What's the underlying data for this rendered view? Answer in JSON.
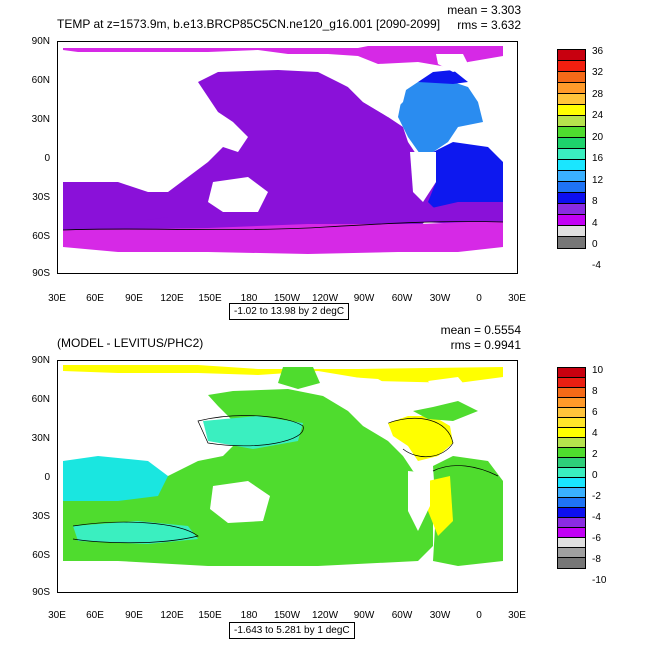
{
  "chart_data": [
    {
      "type": "heatmap",
      "title": "TEMP at z=1573.9m, b.e13.BRCP85C5CN.ne120_g16.001 [2090-2099]",
      "mean_label": "mean = 3.303",
      "rms_label": "rms = 3.632",
      "contour_info": "-1.02 to 13.98 by 2 degC",
      "xticks": [
        "30E",
        "60E",
        "90E",
        "120E",
        "150E",
        "180",
        "150W",
        "120W",
        "90W",
        "60W",
        "30W",
        "0",
        "30E"
      ],
      "yticks": [
        "90N",
        "60N",
        "30N",
        "0",
        "30S",
        "60S",
        "90S"
      ],
      "colorbar_labels": [
        "36",
        "32",
        "28",
        "24",
        "20",
        "16",
        "12",
        "8",
        "4",
        "0",
        "-4"
      ],
      "colorbar_colors": [
        "#c8000f",
        "#f31f0f",
        "#f56a18",
        "#ff9a2a",
        "#ffc43b",
        "#ffff00",
        "#b6e34d",
        "#4fdc2e",
        "#1ed36c",
        "#3aefc0",
        "#1ae6ff",
        "#3ab0ff",
        "#1f73f5",
        "#0d0ff0",
        "#8a2be2",
        "#c200f5",
        "#e0e0e0",
        "#777777"
      ],
      "regions": {
        "pacific_indian": "#8a11d9",
        "southern_ocean": "#d629e6",
        "arctic": "#d629e6",
        "north_atlantic": "#2a8cf0",
        "south_atlantic": "#0d18ef"
      }
    },
    {
      "type": "heatmap",
      "title": "(MODEL - LEVITUS/PHC2)",
      "mean_label": "mean = 0.5554",
      "rms_label": "rms = 0.9941",
      "contour_info": "-1.643 to 5.281 by 1 degC",
      "xticks": [
        "30E",
        "60E",
        "90E",
        "120E",
        "150E",
        "180",
        "150W",
        "120W",
        "90W",
        "60W",
        "30W",
        "0",
        "30E"
      ],
      "yticks": [
        "90N",
        "60N",
        "30N",
        "0",
        "30S",
        "60S",
        "90S"
      ],
      "colorbar_labels": [
        "10",
        "8",
        "6",
        "4",
        "2",
        "0",
        "-2",
        "-4",
        "-6",
        "-8",
        "-10"
      ],
      "colorbar_colors": [
        "#c8000f",
        "#ea1f12",
        "#f56a18",
        "#ff9a2a",
        "#ffc43b",
        "#ffe62a",
        "#ffff00",
        "#b6e34d",
        "#4fdc2e",
        "#2ecf7a",
        "#3aefc0",
        "#1ae6ff",
        "#3ab0ff",
        "#1f73f5",
        "#0d0ff0",
        "#8a2be2",
        "#c200f5",
        "#e0e0e0",
        "#a0a0a0",
        "#777777"
      ],
      "regions": {
        "pacific_indian": "#4fdc2e",
        "western_indian": "#1ae6e0",
        "arctic": "#ffff00",
        "north_atlantic": "#ffff00",
        "south_atlantic": "#4fdc2e"
      }
    }
  ]
}
